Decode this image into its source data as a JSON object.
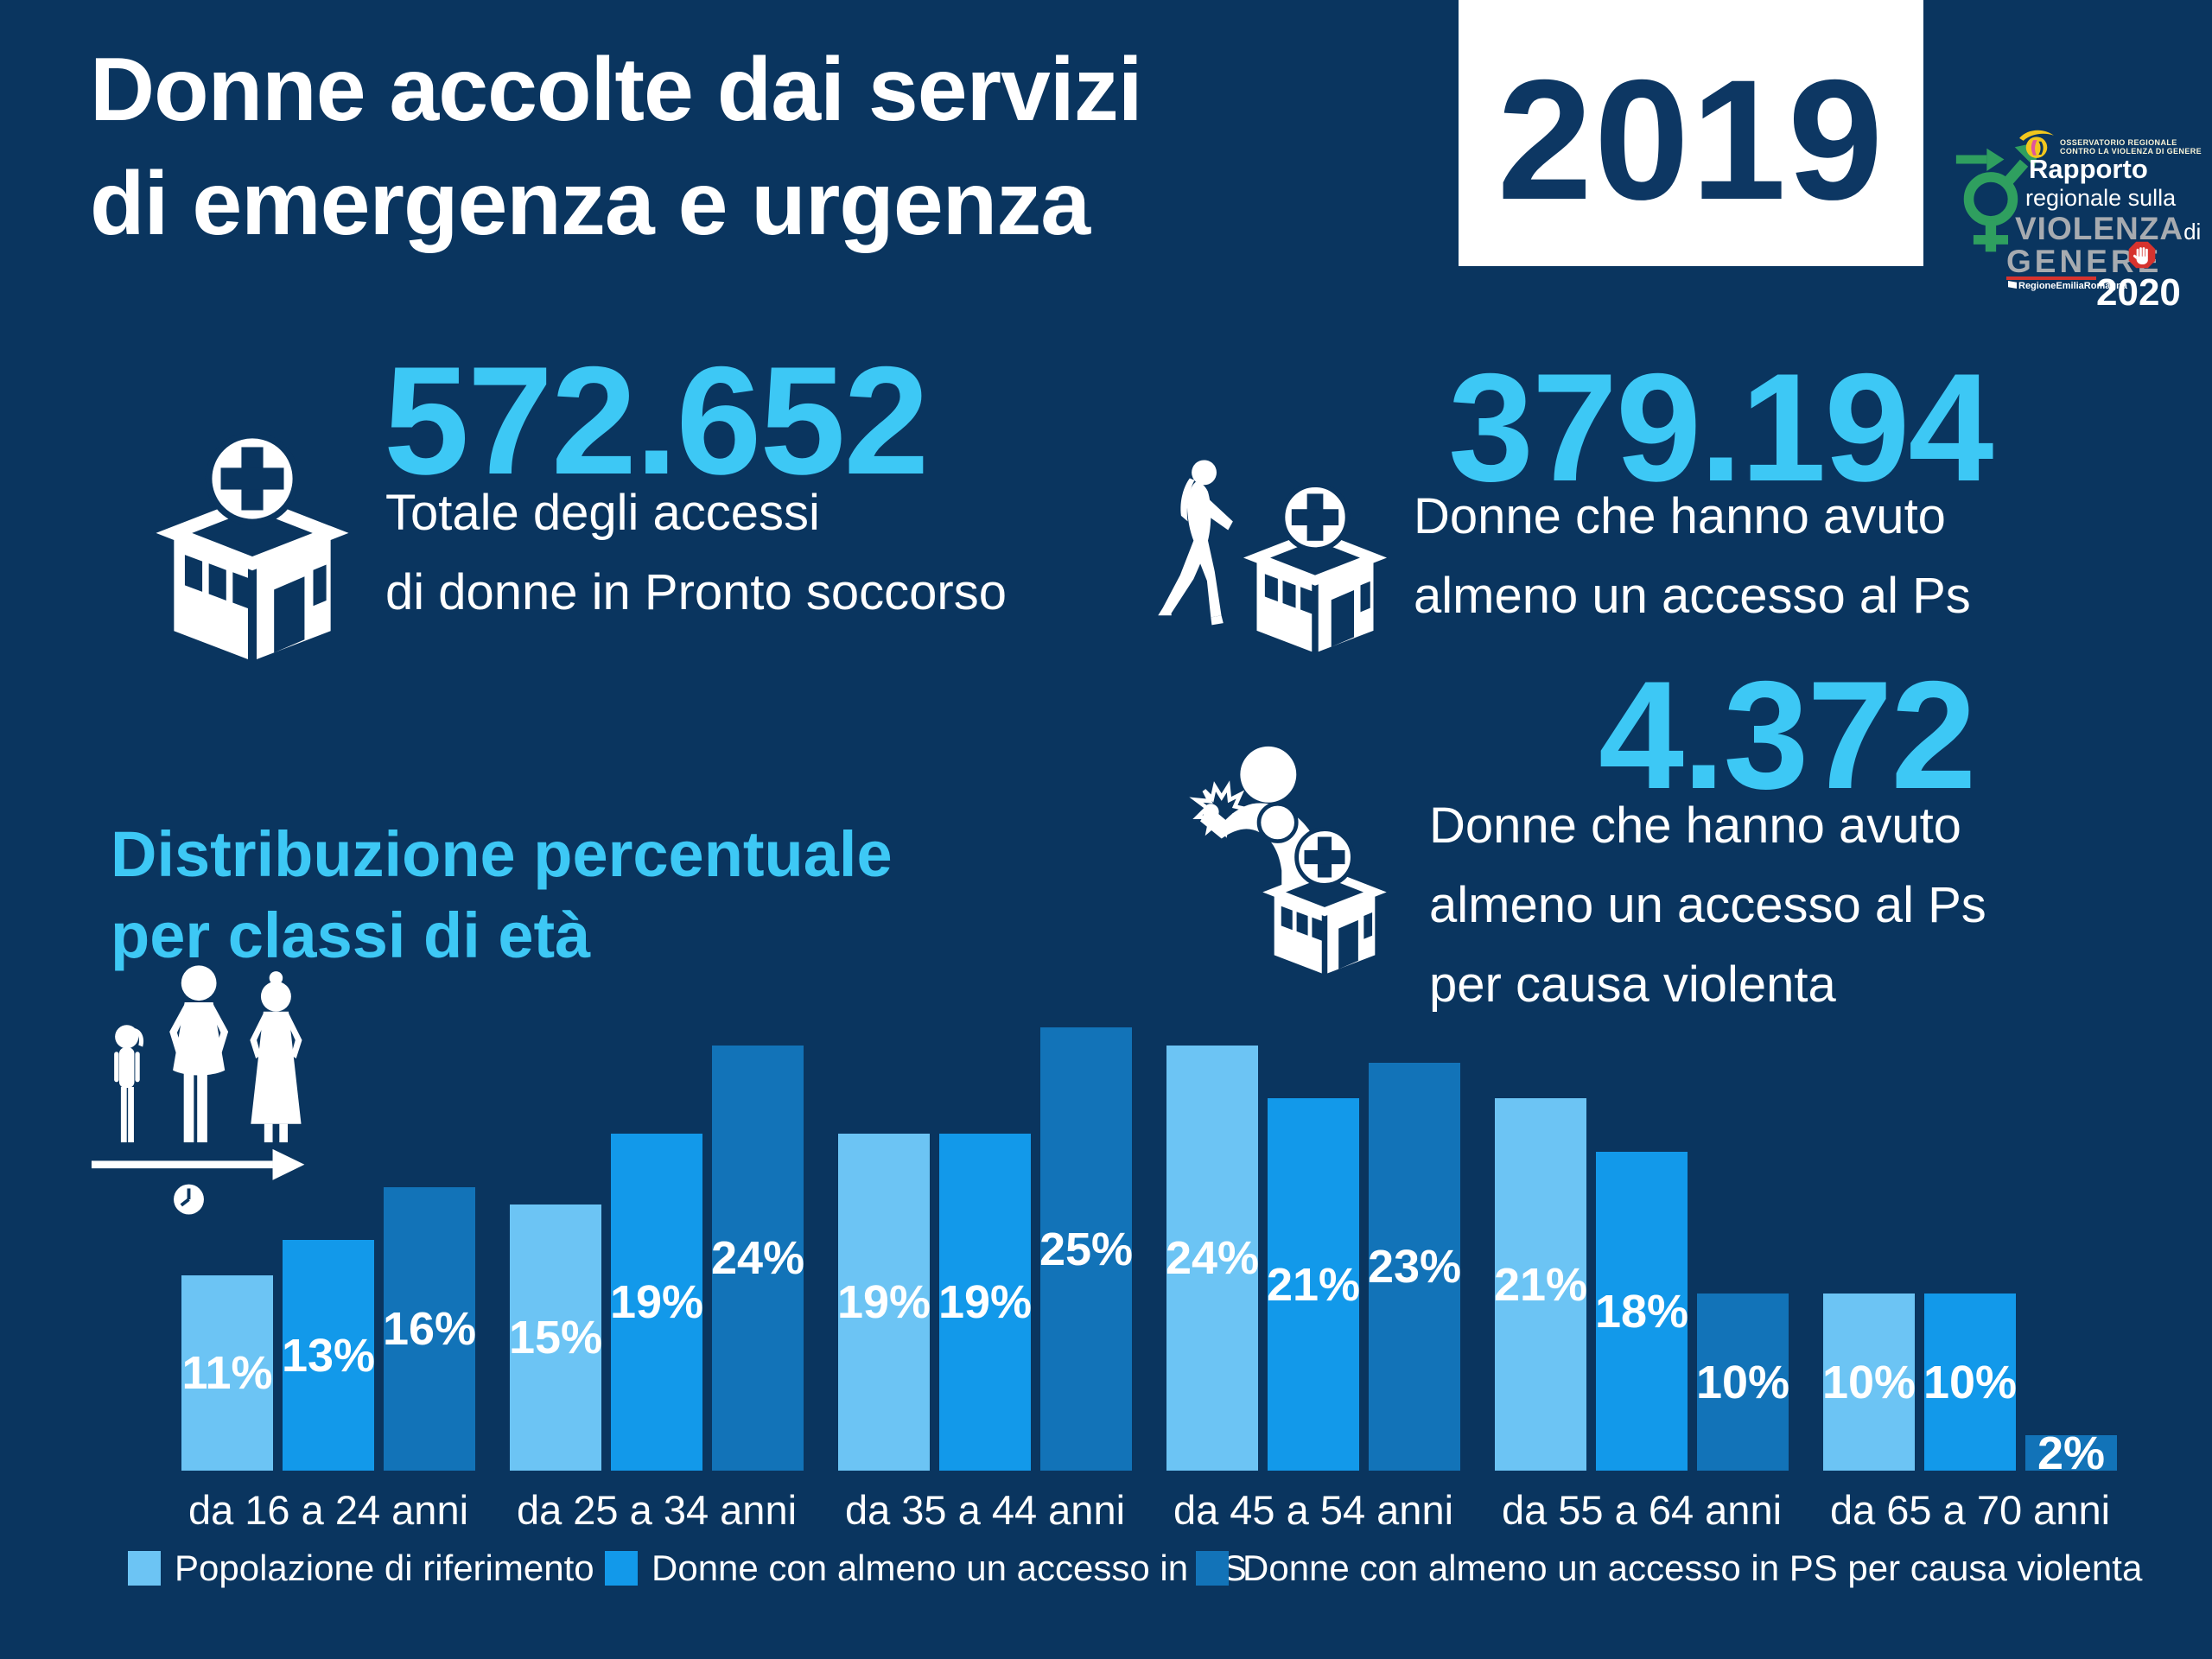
{
  "header": {
    "title_line1": "Donne accolte dai servizi",
    "title_line2": "di emergenza e urgenza",
    "year": "2019"
  },
  "logo": {
    "org_line1": "OSSERVATORIO REGIONALE",
    "org_line2": "CONTRO LA VIOLENZA DI GENERE",
    "report_line1": "Rapporto",
    "report_line2": "regionale sulla",
    "violenza": "VIOLENZA",
    "di": "di",
    "genere": "GENERE",
    "region": "RegioneEmiliaRomagna",
    "year": "2020"
  },
  "stats": [
    {
      "value": "572.652",
      "caption_line1": "Totale degli accessi",
      "caption_line2": "di donne in Pronto soccorso"
    },
    {
      "value": "379.194",
      "caption_line1": "Donne che hanno avuto",
      "caption_line2": "almeno un accesso al Ps"
    },
    {
      "value": "4.372",
      "caption_line1": "Donne che hanno avuto",
      "caption_line2": "almeno un accesso al Ps",
      "caption_line3": "per causa violenta"
    }
  ],
  "chart_heading_line1": "Distribuzione percentuale",
  "chart_heading_line2": "per classi di età",
  "chart_data": {
    "type": "bar",
    "title": "Distribuzione percentuale per classi di età",
    "categories": [
      "da 16 a 24 anni",
      "da 25 a 34 anni",
      "da 35 a 44 anni",
      "da 45 a 54 anni",
      "da 55 a 64 anni",
      "da 65 a 70 anni"
    ],
    "series": [
      {
        "name": "Popolazione di riferimento",
        "color": "#6cc4f4",
        "values": [
          11,
          15,
          19,
          24,
          21,
          10
        ]
      },
      {
        "name": "Donne con almeno un accesso in PS",
        "color": "#1299ea",
        "values": [
          13,
          19,
          19,
          21,
          18,
          10
        ]
      },
      {
        "name": "Donne con almeno un accesso in PS per causa violenta",
        "color": "#1273b8",
        "values": [
          16,
          24,
          25,
          23,
          10,
          2
        ]
      }
    ],
    "unit": "%",
    "value_labels": true,
    "ylim": [
      0,
      26
    ],
    "grid": false,
    "legend_position": "bottom"
  },
  "colors": {
    "background": "#0a355f",
    "accent_cyan": "#3dc8f5",
    "bar_light": "#6cc4f4",
    "bar_medium": "#1299ea",
    "bar_dark": "#1273b8",
    "year_box_bg": "#ffffff",
    "year_text": "#0d3763",
    "logo_green": "#2f9f5f",
    "logo_gray": "#a7abb0",
    "logo_red": "#d6332e",
    "logo_yellow": "#f2c71d",
    "logo_pink": "#e0559c"
  }
}
